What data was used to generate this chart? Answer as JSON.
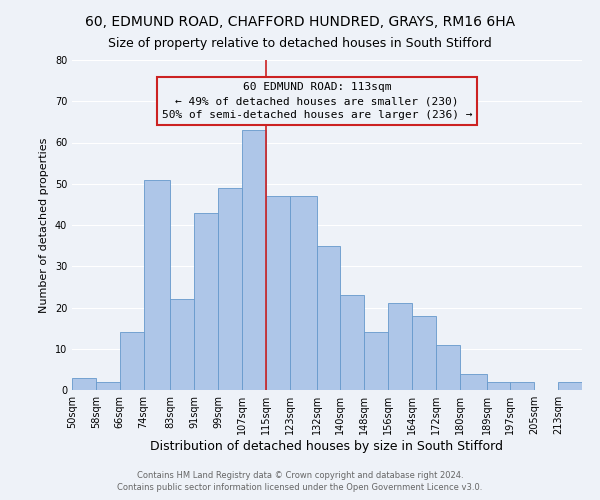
{
  "title": "60, EDMUND ROAD, CHAFFORD HUNDRED, GRAYS, RM16 6HA",
  "subtitle": "Size of property relative to detached houses in South Stifford",
  "xlabel": "Distribution of detached houses by size in South Stifford",
  "ylabel": "Number of detached properties",
  "bar_color": "#aec6e8",
  "bar_edge_color": "#6699cc",
  "highlight_color": "#cc2222",
  "bins": [
    50,
    58,
    66,
    74,
    83,
    91,
    99,
    107,
    115,
    123,
    132,
    140,
    148,
    156,
    164,
    172,
    180,
    189,
    197,
    205,
    213
  ],
  "bin_labels": [
    "50sqm",
    "58sqm",
    "66sqm",
    "74sqm",
    "83sqm",
    "91sqm",
    "99sqm",
    "107sqm",
    "115sqm",
    "123sqm",
    "132sqm",
    "140sqm",
    "148sqm",
    "156sqm",
    "164sqm",
    "172sqm",
    "180sqm",
    "189sqm",
    "197sqm",
    "205sqm",
    "213sqm"
  ],
  "values": [
    3,
    2,
    14,
    51,
    22,
    43,
    49,
    63,
    47,
    47,
    35,
    23,
    14,
    21,
    18,
    11,
    4,
    2,
    2,
    0,
    2
  ],
  "vline_x": 115,
  "ylim": [
    0,
    80
  ],
  "yticks": [
    0,
    10,
    20,
    30,
    40,
    50,
    60,
    70,
    80
  ],
  "annotation_title": "60 EDMUND ROAD: 113sqm",
  "annotation_line1": "← 49% of detached houses are smaller (230)",
  "annotation_line2": "50% of semi-detached houses are larger (236) →",
  "footnote1": "Contains HM Land Registry data © Crown copyright and database right 2024.",
  "footnote2": "Contains public sector information licensed under the Open Government Licence v3.0.",
  "background_color": "#eef2f8",
  "grid_color": "#ffffff",
  "title_fontsize": 10,
  "subtitle_fontsize": 9,
  "xlabel_fontsize": 9,
  "ylabel_fontsize": 8,
  "tick_fontsize": 7,
  "annotation_fontsize": 8,
  "annotation_box_edge": "#cc2222",
  "footnote_color": "#666666",
  "footnote_fontsize": 6
}
